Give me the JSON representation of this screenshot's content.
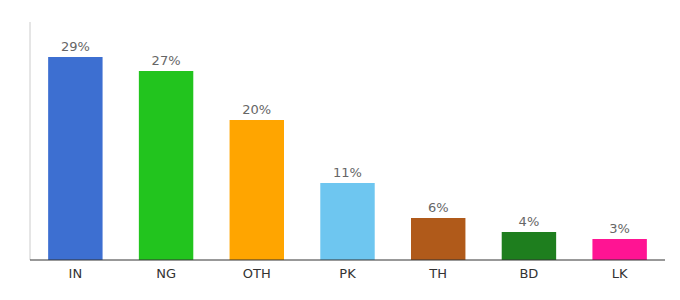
{
  "chart_data": {
    "type": "bar",
    "categories": [
      "IN",
      "NG",
      "OTH",
      "PK",
      "TH",
      "BD",
      "LK"
    ],
    "values": [
      29,
      27,
      20,
      11,
      6,
      4,
      3
    ],
    "value_labels": [
      "29%",
      "27%",
      "20%",
      "11%",
      "6%",
      "4%",
      "3%"
    ],
    "colors": [
      "#3d6fd1",
      "#22c41e",
      "#ffa500",
      "#6ec6f0",
      "#b05a1a",
      "#1e7e1e",
      "#ff1493"
    ],
    "ylim": [
      0,
      34
    ],
    "data_labels": true,
    "tick_labels": "x",
    "grid": false
  }
}
